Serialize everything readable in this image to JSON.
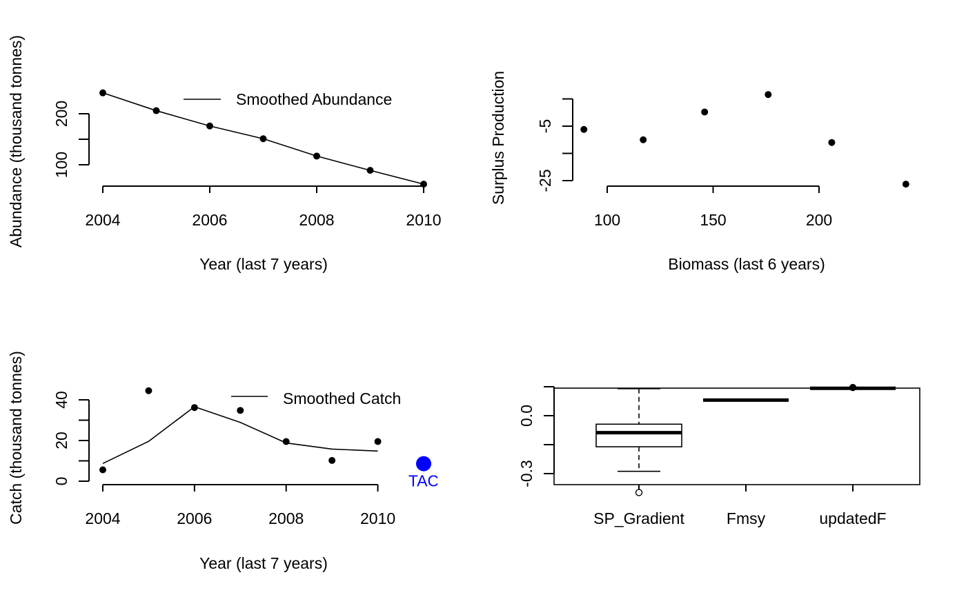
{
  "chart_data": [
    {
      "type": "scatter",
      "xlabel": "Year (last 7 years)",
      "ylabel": "Abundance (thousand tonnes)",
      "xlim": [
        2004,
        2010
      ],
      "ylim": [
        62,
        248
      ],
      "x_ticks": [
        2004,
        2006,
        2008,
        2010
      ],
      "y_ticks": [
        100,
        150,
        200
      ],
      "y_tick_labels": [
        "100",
        "",
        "200"
      ],
      "x": [
        2004,
        2005,
        2006,
        2007,
        2008,
        2009,
        2010
      ],
      "y": [
        241,
        206,
        176,
        151,
        117,
        89,
        62
      ],
      "smooth": [
        241,
        206,
        176,
        151,
        117,
        89,
        62
      ],
      "legend": {
        "label": "Smoothed Abundance",
        "position": "top-right"
      }
    },
    {
      "type": "scatter",
      "xlabel": "Biomass (last 6 years)",
      "ylabel": "Surplus Production",
      "xlim": [
        90,
        241
      ],
      "ylim": [
        -26,
        4
      ],
      "x_ticks": [
        100,
        150,
        200
      ],
      "y_ticks": [
        -25,
        -15,
        -5,
        5
      ],
      "y_tick_labels": [
        "-25",
        "",
        "-5",
        ""
      ],
      "x": [
        89,
        117,
        146,
        176,
        206,
        241
      ],
      "y": [
        -6.2,
        -10.0,
        0.2,
        6.6,
        -11.0,
        -26.3
      ]
    },
    {
      "type": "scatter",
      "xlabel": "Year (last 7 years)",
      "ylabel": "Catch (thousand tonnes)",
      "xlim": [
        2004,
        2011
      ],
      "ylim": [
        0,
        44
      ],
      "x_ticks": [
        2004,
        2006,
        2008,
        2010
      ],
      "y_ticks": [
        0,
        10,
        20,
        30,
        40
      ],
      "y_tick_labels": [
        "0",
        "",
        "20",
        "",
        "40"
      ],
      "x": [
        2004,
        2005,
        2006,
        2007,
        2008,
        2009,
        2010
      ],
      "y": [
        5.6,
        44.5,
        36.2,
        34.8,
        19.5,
        10.2,
        19.5
      ],
      "smooth": [
        8.7,
        19.6,
        36.6,
        28.9,
        18.8,
        15.8,
        14.8
      ],
      "legend": {
        "label": "Smoothed Catch",
        "position": "top-right"
      },
      "tac": {
        "x": 2011,
        "y": 8.6,
        "label": "TAC",
        "color": "#0000ff"
      }
    },
    {
      "type": "boxplot",
      "categories": [
        "SP_Gradient",
        "Fmsy",
        "updatedF"
      ],
      "y_ticks": [
        -0.3,
        -0.15,
        0.0,
        0.15
      ],
      "y_tick_labels": [
        "-0.3",
        "",
        "0.0",
        ""
      ],
      "ylim": [
        -0.35,
        0.155
      ],
      "boxes": [
        {
          "min": -0.288,
          "q1": -0.161,
          "median": -0.088,
          "q3": -0.044,
          "max": 0.14,
          "outliers": [
            -0.398
          ]
        },
        {
          "min": 0.081,
          "q1": 0.081,
          "median": 0.081,
          "q3": 0.081,
          "max": 0.081,
          "outliers": []
        },
        {
          "min": 0.142,
          "q1": 0.142,
          "median": 0.142,
          "q3": 0.142,
          "max": 0.142,
          "outliers": [
            0.146
          ]
        }
      ]
    }
  ]
}
